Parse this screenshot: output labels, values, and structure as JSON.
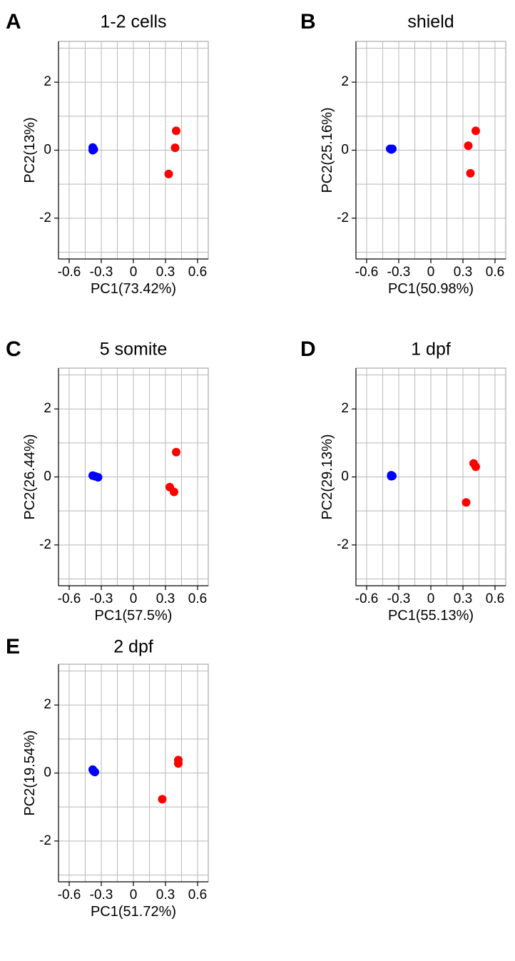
{
  "chart_data": [
    {
      "type": "scatter",
      "panel_label": "A",
      "title": "1-2 cells",
      "xlabel": "PC1(73.42%)",
      "ylabel": "PC2(13%)",
      "xlim": [
        -0.7,
        0.7
      ],
      "ylim": [
        -3.2,
        3.2
      ],
      "xticks": [
        -0.6,
        -0.3,
        0,
        0.3,
        0.6
      ],
      "xtick_labels": [
        "-0.6",
        "-0.3",
        "0",
        "0.3",
        "0.6"
      ],
      "yticks": [
        -2,
        0,
        2
      ],
      "ytick_labels": [
        "-2",
        "0",
        "2"
      ],
      "grid": true,
      "series": [
        {
          "color": "#0000ff",
          "points": [
            [
              -0.38,
              0.08
            ],
            [
              -0.38,
              0.0
            ],
            [
              -0.37,
              0.02
            ]
          ]
        },
        {
          "color": "#ff0000",
          "points": [
            [
              0.4,
              0.57
            ],
            [
              0.39,
              0.07
            ],
            [
              0.33,
              -0.7
            ]
          ]
        }
      ]
    },
    {
      "type": "scatter",
      "panel_label": "B",
      "title": "shield",
      "xlabel": "PC1(50.98%)",
      "ylabel": "PC2(25.16%)",
      "xlim": [
        -0.7,
        0.7
      ],
      "ylim": [
        -3.2,
        3.2
      ],
      "xticks": [
        -0.6,
        -0.3,
        0,
        0.3,
        0.6
      ],
      "xtick_labels": [
        "-0.6",
        "-0.3",
        "0",
        "0.3",
        "0.6"
      ],
      "yticks": [
        -2,
        0,
        2
      ],
      "ytick_labels": [
        "-2",
        "0",
        "2"
      ],
      "grid": true,
      "series": [
        {
          "color": "#0000ff",
          "points": [
            [
              -0.38,
              0.04
            ],
            [
              -0.36,
              0.04
            ],
            [
              -0.37,
              0.02
            ]
          ]
        },
        {
          "color": "#ff0000",
          "points": [
            [
              0.42,
              0.57
            ],
            [
              0.35,
              0.13
            ],
            [
              0.37,
              -0.68
            ]
          ]
        }
      ]
    },
    {
      "type": "scatter",
      "panel_label": "C",
      "title": "5 somite",
      "xlabel": "PC1(57.5%)",
      "ylabel": "PC2(26.44%)",
      "xlim": [
        -0.7,
        0.7
      ],
      "ylim": [
        -3.2,
        3.2
      ],
      "xticks": [
        -0.6,
        -0.3,
        0,
        0.3,
        0.6
      ],
      "xtick_labels": [
        "-0.6",
        "-0.3",
        "0",
        "0.3",
        "0.6"
      ],
      "yticks": [
        -2,
        0,
        2
      ],
      "ytick_labels": [
        "-2",
        "0",
        "2"
      ],
      "grid": true,
      "series": [
        {
          "color": "#0000ff",
          "points": [
            [
              -0.38,
              0.04
            ],
            [
              -0.33,
              -0.01
            ],
            [
              -0.36,
              0.02
            ]
          ]
        },
        {
          "color": "#ff0000",
          "points": [
            [
              0.4,
              0.73
            ],
            [
              0.34,
              -0.3
            ],
            [
              0.38,
              -0.44
            ]
          ]
        }
      ]
    },
    {
      "type": "scatter",
      "panel_label": "D",
      "title": "1 dpf",
      "xlabel": "PC1(55.13%)",
      "ylabel": "PC2(29.13%)",
      "xlim": [
        -0.7,
        0.7
      ],
      "ylim": [
        -3.2,
        3.2
      ],
      "xticks": [
        -0.6,
        -0.3,
        0,
        0.3,
        0.6
      ],
      "xtick_labels": [
        "-0.6",
        "-0.3",
        "0",
        "0.3",
        "0.6"
      ],
      "yticks": [
        -2,
        0,
        2
      ],
      "ytick_labels": [
        "-2",
        "0",
        "2"
      ],
      "grid": true,
      "series": [
        {
          "color": "#0000ff",
          "points": [
            [
              -0.37,
              0.05
            ],
            [
              -0.36,
              0.03
            ],
            [
              -0.37,
              0.02
            ]
          ]
        },
        {
          "color": "#ff0000",
          "points": [
            [
              0.4,
              0.4
            ],
            [
              0.42,
              0.3
            ],
            [
              0.33,
              -0.75
            ]
          ]
        }
      ]
    },
    {
      "type": "scatter",
      "panel_label": "E",
      "title": "2 dpf",
      "xlabel": "PC1(51.72%)",
      "ylabel": "PC2(19.54%)",
      "xlim": [
        -0.7,
        0.7
      ],
      "ylim": [
        -3.2,
        3.2
      ],
      "xticks": [
        -0.6,
        -0.3,
        0,
        0.3,
        0.6
      ],
      "xtick_labels": [
        "-0.6",
        "-0.3",
        "0",
        "0.3",
        "0.6"
      ],
      "yticks": [
        -2,
        0,
        2
      ],
      "ytick_labels": [
        "-2",
        "0",
        "2"
      ],
      "grid": true,
      "series": [
        {
          "color": "#0000ff",
          "points": [
            [
              -0.38,
              0.1
            ],
            [
              -0.37,
              0.05
            ],
            [
              -0.36,
              0.03
            ]
          ]
        },
        {
          "color": "#ff0000",
          "points": [
            [
              0.42,
              0.38
            ],
            [
              0.42,
              0.28
            ],
            [
              0.27,
              -0.77
            ]
          ]
        }
      ]
    }
  ]
}
